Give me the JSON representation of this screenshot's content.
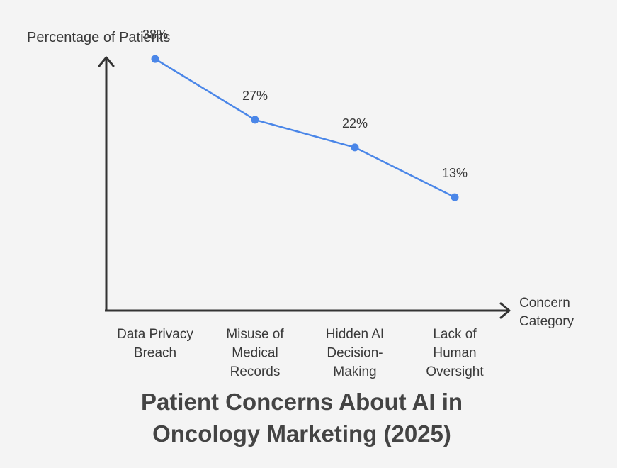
{
  "chart_data": {
    "type": "line",
    "title": "Patient Concerns About AI in Oncology Marketing (2025)",
    "title_lines": [
      "Patient Concerns About AI in",
      "Oncology Marketing (2025)"
    ],
    "ylabel": "Percentage of Patients",
    "xlabel": "Concern Category",
    "xlabel_lines": [
      "Concern",
      "Category"
    ],
    "categories": [
      "Data Privacy Breach",
      "Misuse of Medical Records",
      "Hidden AI Decision-Making",
      "Lack of Human Oversight"
    ],
    "category_lines": [
      [
        "Data Privacy",
        "Breach"
      ],
      [
        "Misuse of",
        "Medical",
        "Records"
      ],
      [
        "Hidden AI",
        "Decision-",
        "Making"
      ],
      [
        "Lack of",
        "Human",
        "Oversight"
      ]
    ],
    "values": [
      38,
      27,
      22,
      13
    ],
    "data_labels": [
      "38%",
      "27%",
      "22%",
      "13%"
    ],
    "grid": false,
    "legend": "none",
    "colors": {
      "line": "#4a86e8",
      "axis": "#333333",
      "text": "#3a3a3a",
      "title": "#444444"
    }
  }
}
